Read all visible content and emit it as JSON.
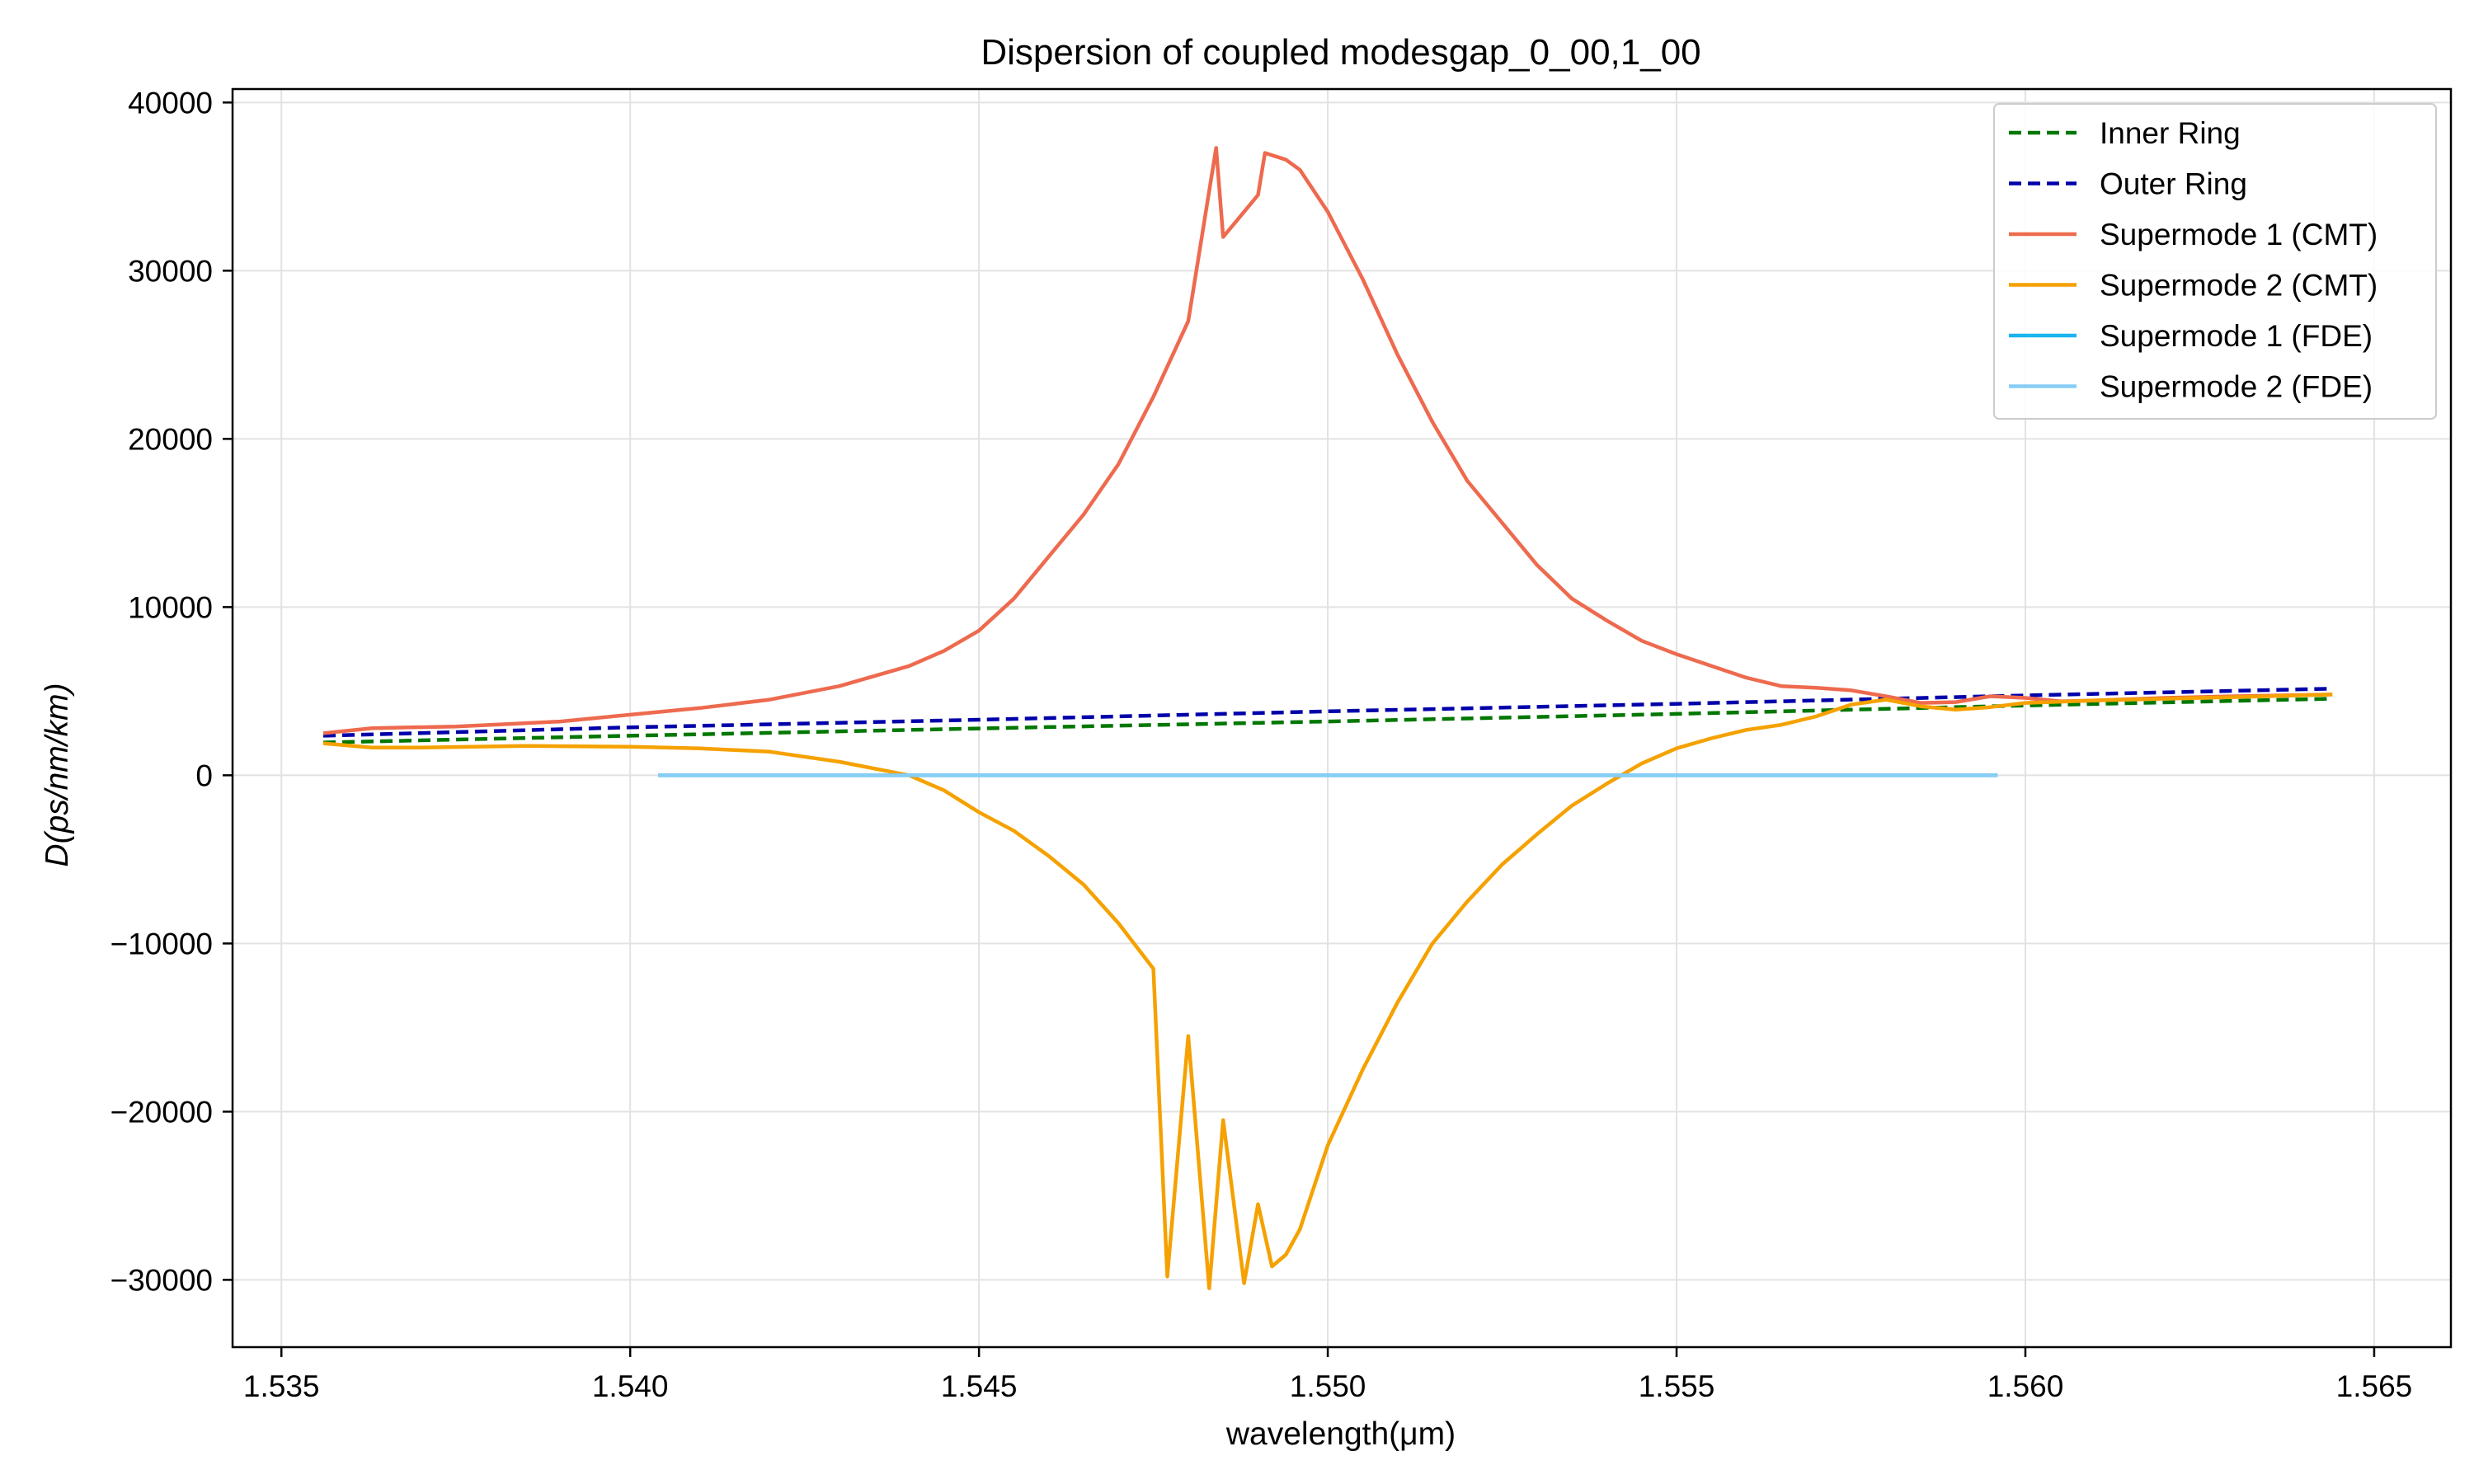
{
  "chart_data": {
    "type": "line",
    "title": "Dispersion of coupled modesgap_0_00,1_00",
    "xlabel": "wavelength(μm)",
    "ylabel": "D(ps/nm/km)",
    "xlim": [
      1.5343,
      1.5661
    ],
    "ylim": [
      -34000,
      40800
    ],
    "xticks": [
      1.535,
      1.54,
      1.545,
      1.55,
      1.555,
      1.56,
      1.565
    ],
    "xtick_labels": [
      "1.535",
      "1.540",
      "1.545",
      "1.550",
      "1.555",
      "1.560",
      "1.565"
    ],
    "yticks": [
      -30000,
      -20000,
      -10000,
      0,
      10000,
      20000,
      30000,
      40000
    ],
    "ytick_labels": [
      "−30000",
      "−20000",
      "−10000",
      "0",
      "10000",
      "20000",
      "30000",
      "40000"
    ],
    "grid": true,
    "legend_position": "top-right",
    "series": [
      {
        "name": "Inner Ring",
        "color": "#007700",
        "style": "dashed",
        "points": [
          [
            1.5356,
            1950
          ],
          [
            1.54,
            2350
          ],
          [
            1.545,
            2780
          ],
          [
            1.55,
            3200
          ],
          [
            1.555,
            3650
          ],
          [
            1.56,
            4150
          ],
          [
            1.5644,
            4550
          ]
        ]
      },
      {
        "name": "Outer Ring",
        "color": "#0000aa",
        "style": "dashed",
        "points": [
          [
            1.5356,
            2350
          ],
          [
            1.54,
            2850
          ],
          [
            1.545,
            3300
          ],
          [
            1.55,
            3800
          ],
          [
            1.555,
            4250
          ],
          [
            1.56,
            4750
          ],
          [
            1.5644,
            5150
          ]
        ]
      },
      {
        "name": "Supermode 1 (CMT)",
        "color": "#ee6a4f",
        "style": "solid",
        "points": [
          [
            1.5356,
            2500
          ],
          [
            1.5363,
            2800
          ],
          [
            1.5375,
            2900
          ],
          [
            1.539,
            3200
          ],
          [
            1.54,
            3600
          ],
          [
            1.541,
            4000
          ],
          [
            1.542,
            4500
          ],
          [
            1.543,
            5300
          ],
          [
            1.544,
            6500
          ],
          [
            1.5445,
            7400
          ],
          [
            1.545,
            8600
          ],
          [
            1.5455,
            10500
          ],
          [
            1.546,
            13000
          ],
          [
            1.5465,
            15500
          ],
          [
            1.547,
            18500
          ],
          [
            1.5475,
            22500
          ],
          [
            1.548,
            27000
          ],
          [
            1.5485,
            32000
          ],
          [
            1.549,
            34500
          ],
          [
            1.5494,
            36600
          ],
          [
            1.5484,
            37300
          ],
          [
            1.5491,
            37000
          ],
          [
            1.5496,
            36000
          ],
          [
            1.55,
            33500
          ],
          [
            1.5505,
            29500
          ],
          [
            1.551,
            25000
          ],
          [
            1.5515,
            21000
          ],
          [
            1.552,
            17500
          ],
          [
            1.5525,
            15000
          ],
          [
            1.553,
            12500
          ],
          [
            1.5535,
            10500
          ],
          [
            1.554,
            9200
          ],
          [
            1.5545,
            8000
          ],
          [
            1.555,
            7200
          ],
          [
            1.5555,
            6500
          ],
          [
            1.556,
            5800
          ],
          [
            1.5565,
            5300
          ],
          [
            1.557,
            5200
          ],
          [
            1.5575,
            5050
          ],
          [
            1.558,
            4700
          ],
          [
            1.5585,
            4300
          ],
          [
            1.559,
            4350
          ],
          [
            1.5595,
            4700
          ],
          [
            1.56,
            4600
          ],
          [
            1.5605,
            4400
          ],
          [
            1.561,
            4450
          ],
          [
            1.562,
            4600
          ],
          [
            1.563,
            4700
          ],
          [
            1.5644,
            4800
          ]
        ]
      },
      {
        "name": "Supermode 2 (CMT)",
        "color": "#f5a100",
        "style": "solid",
        "points": [
          [
            1.5356,
            1900
          ],
          [
            1.5363,
            1650
          ],
          [
            1.537,
            1650
          ],
          [
            1.5385,
            1750
          ],
          [
            1.54,
            1700
          ],
          [
            1.541,
            1600
          ],
          [
            1.542,
            1400
          ],
          [
            1.543,
            800
          ],
          [
            1.544,
            0
          ],
          [
            1.5445,
            -900
          ],
          [
            1.545,
            -2200
          ],
          [
            1.5455,
            -3300
          ],
          [
            1.546,
            -4800
          ],
          [
            1.5465,
            -6500
          ],
          [
            1.547,
            -8800
          ],
          [
            1.5475,
            -11500
          ],
          [
            1.548,
            -15500
          ],
          [
            1.5485,
            -20500
          ],
          [
            1.549,
            -25500
          ],
          [
            1.5494,
            -28500
          ],
          [
            1.5477,
            -29800
          ],
          [
            1.5483,
            -30500
          ],
          [
            1.5488,
            -30200
          ],
          [
            1.5492,
            -29200
          ],
          [
            1.5496,
            -27000
          ],
          [
            1.55,
            -22000
          ],
          [
            1.5505,
            -17500
          ],
          [
            1.551,
            -13500
          ],
          [
            1.5515,
            -10000
          ],
          [
            1.552,
            -7500
          ],
          [
            1.5525,
            -5300
          ],
          [
            1.553,
            -3500
          ],
          [
            1.5535,
            -1800
          ],
          [
            1.554,
            -500
          ],
          [
            1.5545,
            700
          ],
          [
            1.555,
            1600
          ],
          [
            1.5555,
            2200
          ],
          [
            1.556,
            2700
          ],
          [
            1.5565,
            3000
          ],
          [
            1.557,
            3500
          ],
          [
            1.5575,
            4200
          ],
          [
            1.558,
            4500
          ],
          [
            1.5585,
            4100
          ],
          [
            1.559,
            3900
          ],
          [
            1.5595,
            4050
          ],
          [
            1.56,
            4300
          ],
          [
            1.561,
            4450
          ],
          [
            1.562,
            4550
          ],
          [
            1.563,
            4650
          ],
          [
            1.5644,
            4800
          ]
        ]
      },
      {
        "name": "Supermode 1 (FDE)",
        "color": "#1ab4ee",
        "style": "solid",
        "points": [
          [
            1.5404,
            0
          ],
          [
            1.5596,
            0
          ]
        ]
      },
      {
        "name": "Supermode 2 (FDE)",
        "color": "#87cdf5",
        "style": "solid",
        "points": [
          [
            1.5404,
            0
          ],
          [
            1.5596,
            0
          ]
        ]
      }
    ]
  }
}
